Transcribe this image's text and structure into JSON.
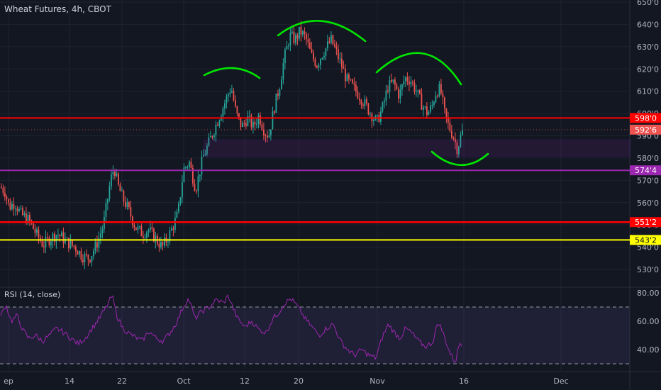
{
  "header": {
    "title": "Wheat Futures, 4h, CBOT"
  },
  "rsi": {
    "title": "RSI (14, close)",
    "upper_band": 70,
    "lower_band": 30,
    "mid": 50
  },
  "colors": {
    "background": "#131722",
    "up": "#26a69a",
    "down": "#ef5350",
    "resistance": "#ff0000",
    "support": "#ffff00",
    "zone": "#9c27b0",
    "pattern": "#00e600",
    "rsi_line": "#9c27b0",
    "grid": "#1f2330"
  },
  "chart_data": {
    "type": "candlestick",
    "symbol": "Wheat Futures",
    "timeframe": "4h",
    "exchange": "CBOT",
    "x_tick_labels": [
      "ep",
      "14",
      "22",
      "Oct",
      "12",
      "20",
      "Nov",
      "16",
      "Dec"
    ],
    "y_tick_labels": [
      "650'0",
      "640'0",
      "630'0",
      "620'0",
      "610'0",
      "600'0",
      "590'0",
      "580'0",
      "570'0",
      "560'0",
      "550'0",
      "540'0",
      "530'0"
    ],
    "ylim": [
      525,
      652
    ],
    "price_path": [
      [
        0,
        567
      ],
      [
        6,
        565
      ],
      [
        12,
        558
      ],
      [
        20,
        560
      ],
      [
        28,
        555
      ],
      [
        40,
        552
      ],
      [
        50,
        546
      ],
      [
        60,
        541
      ],
      [
        70,
        544
      ],
      [
        80,
        546
      ],
      [
        95,
        542
      ],
      [
        105,
        540
      ],
      [
        115,
        536
      ],
      [
        125,
        535
      ],
      [
        135,
        541
      ],
      [
        145,
        550
      ],
      [
        155,
        570
      ],
      [
        160,
        576
      ],
      [
        165,
        568
      ],
      [
        172,
        562
      ],
      [
        180,
        557
      ],
      [
        190,
        549
      ],
      [
        200,
        546
      ],
      [
        208,
        548
      ],
      [
        218,
        544
      ],
      [
        228,
        540
      ],
      [
        240,
        547
      ],
      [
        250,
        555
      ],
      [
        258,
        575
      ],
      [
        266,
        578
      ],
      [
        275,
        566
      ],
      [
        285,
        580
      ],
      [
        295,
        588
      ],
      [
        305,
        596
      ],
      [
        315,
        604
      ],
      [
        320,
        608
      ],
      [
        325,
        612
      ],
      [
        332,
        600
      ],
      [
        340,
        594
      ],
      [
        348,
        598
      ],
      [
        356,
        594
      ],
      [
        364,
        599
      ],
      [
        372,
        592
      ],
      [
        378,
        590
      ],
      [
        386,
        603
      ],
      [
        393,
        612
      ],
      [
        400,
        625
      ],
      [
        408,
        635
      ],
      [
        415,
        633
      ],
      [
        422,
        637
      ],
      [
        430,
        634
      ],
      [
        438,
        626
      ],
      [
        446,
        622
      ],
      [
        452,
        626
      ],
      [
        460,
        630
      ],
      [
        466,
        633
      ],
      [
        474,
        627
      ],
      [
        480,
        622
      ],
      [
        488,
        615
      ],
      [
        496,
        612
      ],
      [
        506,
        608
      ],
      [
        514,
        604
      ],
      [
        522,
        600
      ],
      [
        530,
        596
      ],
      [
        538,
        602
      ],
      [
        546,
        612
      ],
      [
        554,
        614
      ],
      [
        562,
        608
      ],
      [
        570,
        616
      ],
      [
        578,
        615
      ],
      [
        586,
        610
      ],
      [
        594,
        604
      ],
      [
        602,
        600
      ],
      [
        608,
        603
      ],
      [
        614,
        610
      ],
      [
        620,
        611
      ],
      [
        626,
        600
      ],
      [
        632,
        594
      ],
      [
        638,
        590
      ],
      [
        644,
        584
      ],
      [
        648,
        589
      ],
      [
        652,
        592.6
      ]
    ],
    "rsi_path": [
      [
        0,
        62
      ],
      [
        8,
        72
      ],
      [
        16,
        60
      ],
      [
        24,
        64
      ],
      [
        32,
        54
      ],
      [
        40,
        48
      ],
      [
        50,
        50
      ],
      [
        60,
        46
      ],
      [
        70,
        50
      ],
      [
        80,
        55
      ],
      [
        90,
        52
      ],
      [
        100,
        48
      ],
      [
        110,
        44
      ],
      [
        120,
        48
      ],
      [
        130,
        55
      ],
      [
        140,
        62
      ],
      [
        150,
        70
      ],
      [
        158,
        78
      ],
      [
        165,
        64
      ],
      [
        172,
        56
      ],
      [
        180,
        52
      ],
      [
        190,
        49
      ],
      [
        200,
        46
      ],
      [
        210,
        53
      ],
      [
        220,
        48
      ],
      [
        230,
        46
      ],
      [
        240,
        52
      ],
      [
        250,
        60
      ],
      [
        258,
        70
      ],
      [
        266,
        76
      ],
      [
        275,
        62
      ],
      [
        285,
        67
      ],
      [
        295,
        70
      ],
      [
        305,
        75
      ],
      [
        315,
        73
      ],
      [
        322,
        78
      ],
      [
        328,
        70
      ],
      [
        335,
        62
      ],
      [
        345,
        56
      ],
      [
        355,
        60
      ],
      [
        365,
        54
      ],
      [
        375,
        52
      ],
      [
        385,
        62
      ],
      [
        393,
        66
      ],
      [
        400,
        72
      ],
      [
        410,
        76
      ],
      [
        420,
        70
      ],
      [
        430,
        62
      ],
      [
        440,
        56
      ],
      [
        450,
        50
      ],
      [
        460,
        55
      ],
      [
        470,
        58
      ],
      [
        480,
        46
      ],
      [
        490,
        40
      ],
      [
        500,
        36
      ],
      [
        510,
        40
      ],
      [
        520,
        36
      ],
      [
        530,
        34
      ],
      [
        540,
        50
      ],
      [
        548,
        58
      ],
      [
        556,
        52
      ],
      [
        564,
        48
      ],
      [
        572,
        55
      ],
      [
        580,
        52
      ],
      [
        590,
        46
      ],
      [
        600,
        42
      ],
      [
        610,
        45
      ],
      [
        618,
        60
      ],
      [
        626,
        50
      ],
      [
        634,
        38
      ],
      [
        642,
        31
      ],
      [
        648,
        45
      ],
      [
        652,
        44
      ]
    ],
    "price_labels": [
      {
        "label": "598'0",
        "value": 598.0,
        "color": "#ff0000",
        "kind": "resistance"
      },
      {
        "label": "592'6",
        "value": 592.75,
        "color": "#ef5350",
        "kind": "last-price"
      },
      {
        "label": "574'4",
        "value": 574.5,
        "color": "#9c27b0",
        "kind": "support"
      },
      {
        "label": "551'2",
        "value": 551.25,
        "color": "#ff0000",
        "kind": "support"
      },
      {
        "label": "543'2",
        "value": 543.25,
        "color": "#ffff00",
        "kind": "support"
      }
    ],
    "rsi_ticks": [
      "80.00",
      "60.00",
      "40.00"
    ],
    "rsi_ylim": [
      24,
      84
    ],
    "zone": {
      "from": 581,
      "to": 588
    },
    "grid": true
  }
}
